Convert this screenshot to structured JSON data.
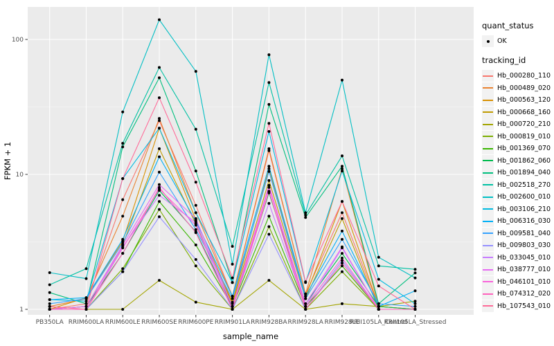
{
  "axes": {
    "xlabel": "sample_name",
    "ylabel": "FPKM + 1"
  },
  "legend": {
    "quant_title": "quant_status",
    "quant_items": [
      {
        "label": "OK",
        "marker": "black-point"
      }
    ],
    "tracking_title": "tracking_id",
    "key_bg": "#F2F2F2"
  },
  "chart_data": {
    "type": "line",
    "title": "",
    "xlabel": "sample_name",
    "ylabel": "FPKM + 1",
    "y_scale": "log10",
    "y_ticks": [
      1,
      10,
      100
    ],
    "y_minor_ticks": [
      3.162,
      31.62
    ],
    "ylim": [
      0.91,
      174
    ],
    "grid": true,
    "legend_position": "right",
    "panel_bg": "#EBEBEB",
    "grid_major_color": "#FFFFFF",
    "grid_minor_color": "#F5F5F5",
    "point_color": "#000000",
    "tick_label_color": "#4D4D4D",
    "categories": [
      "PB350LA",
      "RRIM600LA",
      "RRIM600LE",
      "RRIM600SE",
      "RRIM600PE",
      "RRIM901LA",
      "RRIM928BA",
      "RRIM928LA",
      "RRIM928LE",
      "RRII105LA_Control",
      "RRII105LA_Stressed"
    ],
    "series": [
      {
        "name": "Hb_000280_110",
        "color": "#F8766D",
        "values": [
          1.0,
          1.1,
          6.5,
          25,
          5.9,
          1.25,
          15,
          1.3,
          5.2,
          1.05,
          1.0
        ]
      },
      {
        "name": "Hb_000489_020",
        "color": "#EA8331",
        "values": [
          1.05,
          1.2,
          4.9,
          26,
          5.2,
          1.25,
          15.5,
          1.3,
          11,
          1.05,
          1.0
        ]
      },
      {
        "name": "Hb_000563_120",
        "color": "#D89000",
        "values": [
          1.0,
          1.22,
          3.2,
          22,
          4.6,
          1.13,
          11,
          1.25,
          6.3,
          1.05,
          1.0
        ]
      },
      {
        "name": "Hb_000668_160",
        "color": "#C09B00",
        "values": [
          1.0,
          1.05,
          3.0,
          15.5,
          4.3,
          1.1,
          9,
          1.2,
          4.7,
          1.0,
          1.0
        ]
      },
      {
        "name": "Hb_000720_210",
        "color": "#A3A500",
        "values": [
          1.0,
          1.0,
          1.0,
          1.64,
          1.13,
          1.0,
          1.64,
          1.0,
          1.1,
          1.05,
          1.15
        ]
      },
      {
        "name": "Hb_000819_010",
        "color": "#7CAE00",
        "values": [
          1.0,
          1.0,
          2.0,
          5.5,
          2.1,
          1.0,
          4.1,
          1.0,
          1.9,
          1.0,
          1.0
        ]
      },
      {
        "name": "Hb_001369_070",
        "color": "#39B600",
        "values": [
          1.0,
          1.0,
          1.9,
          6.3,
          3.0,
          1.05,
          4.9,
          1.05,
          2.1,
          1.0,
          1.0
        ]
      },
      {
        "name": "Hb_001862_060",
        "color": "#00BB4E",
        "values": [
          1.0,
          1.05,
          2.6,
          7.6,
          3.75,
          1.05,
          7.3,
          1.1,
          2.6,
          1.05,
          1.0
        ]
      },
      {
        "name": "Hb_001894_040",
        "color": "#00BF7D",
        "values": [
          1.33,
          1.1,
          16,
          52,
          10.6,
          1.58,
          33,
          4.8,
          11.5,
          1.1,
          1.86
        ]
      },
      {
        "name": "Hb_002518_270",
        "color": "#00C1A3",
        "values": [
          1.52,
          2.0,
          17,
          62,
          21.6,
          2.93,
          48,
          5.0,
          13.7,
          2.1,
          1.98
        ]
      },
      {
        "name": "Hb_002600_010",
        "color": "#00BFC4",
        "values": [
          1.87,
          1.69,
          29,
          140,
          58,
          2.16,
          77,
          5.2,
          50,
          2.43,
          1.71
        ]
      },
      {
        "name": "Hb_003106_210",
        "color": "#00BAE0",
        "values": [
          1.18,
          1.15,
          9.3,
          22,
          5.2,
          1.58,
          20.8,
          1.58,
          10.6,
          1.67,
          1.1
        ]
      },
      {
        "name": "Hb_006316_030",
        "color": "#00B0F6",
        "values": [
          1.18,
          1.22,
          3.3,
          13.5,
          4.5,
          1.25,
          11.5,
          1.25,
          3.8,
          1.05,
          1.37
        ]
      },
      {
        "name": "Hb_009581_040",
        "color": "#35A2FF",
        "values": [
          1.1,
          1.2,
          3.1,
          10.4,
          3.9,
          1.2,
          10.5,
          1.2,
          3.3,
          1.1,
          1.05
        ]
      },
      {
        "name": "Hb_009803_030",
        "color": "#9590FF",
        "values": [
          1.0,
          1.0,
          1.9,
          4.85,
          2.34,
          1.0,
          3.6,
          1.0,
          2.3,
          1.0,
          1.0
        ]
      },
      {
        "name": "Hb_033045_010",
        "color": "#C77CFF",
        "values": [
          1.0,
          1.05,
          2.9,
          7.0,
          4.4,
          1.05,
          6.1,
          1.05,
          2.85,
          1.0,
          1.0
        ]
      },
      {
        "name": "Hb_038777_010",
        "color": "#E76BF3",
        "values": [
          1.0,
          1.05,
          3.0,
          8.4,
          4.7,
          1.05,
          8.3,
          1.1,
          2.9,
          1.0,
          1.0
        ]
      },
      {
        "name": "Hb_046101_010",
        "color": "#FA62DB",
        "values": [
          1.0,
          1.0,
          2.85,
          7.8,
          4.2,
          1.0,
          8.0,
          1.05,
          2.4,
          1.0,
          1.0
        ]
      },
      {
        "name": "Hb_074312_020",
        "color": "#FF62BC",
        "values": [
          1.0,
          1.0,
          2.6,
          8.0,
          3.7,
          1.0,
          7.5,
          1.0,
          2.2,
          1.0,
          1.0
        ]
      },
      {
        "name": "Hb_107543_010",
        "color": "#FF6A98",
        "values": [
          1.05,
          1.0,
          9.3,
          37,
          8.75,
          1.71,
          23.9,
          1.6,
          6.3,
          1.49,
          1.0
        ]
      }
    ]
  }
}
